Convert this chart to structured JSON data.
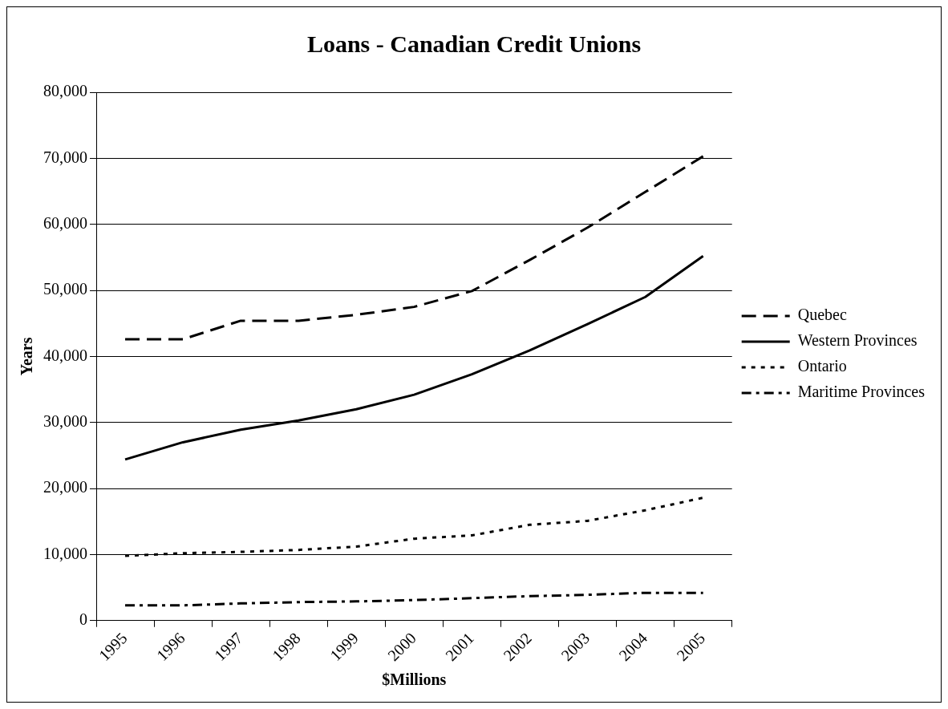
{
  "chart_data": {
    "type": "line",
    "title": "Loans - Canadian Credit Unions",
    "xlabel": "$Millions",
    "ylabel": "Years",
    "categories": [
      "1995",
      "1996",
      "1997",
      "1998",
      "1999",
      "2000",
      "2001",
      "2002",
      "2003",
      "2004",
      "2005"
    ],
    "series": [
      {
        "name": "Quebec",
        "color": "#000000",
        "line_style": "dashed",
        "values": [
          42600,
          42600,
          45400,
          45400,
          46300,
          47500,
          49900,
          54600,
          59500,
          64900,
          70300
        ]
      },
      {
        "name": "Western Provinces",
        "color": "#000000",
        "line_style": "solid",
        "values": [
          24400,
          27000,
          28900,
          30300,
          32000,
          34200,
          37300,
          40900,
          44900,
          49000,
          55200
        ]
      },
      {
        "name": "Ontario",
        "color": "#000000",
        "line_style": "dotted",
        "values": [
          9800,
          10200,
          10400,
          10700,
          11200,
          12400,
          12900,
          14500,
          15100,
          16700,
          18600
        ]
      },
      {
        "name": "Maritime Provinces",
        "color": "#000000",
        "line_style": "dashdot",
        "values": [
          2300,
          2300,
          2600,
          2800,
          2900,
          3100,
          3400,
          3700,
          3900,
          4200,
          4200
        ]
      }
    ],
    "ylim": [
      0,
      80000
    ],
    "yticks": [
      0,
      {
        "value": 10000,
        "label": "10,000"
      },
      {
        "value": 20000,
        "label": "20,000"
      },
      {
        "value": 30000,
        "label": "30,000"
      },
      {
        "value": 40000,
        "label": "40,000"
      },
      {
        "value": 50000,
        "label": "50,000"
      },
      {
        "value": 60000,
        "label": "60,000"
      },
      {
        "value": 70000,
        "label": "70,000"
      },
      {
        "value": 80000,
        "label": "80,000"
      }
    ],
    "grid": "y",
    "legend": "right",
    "marker": "none"
  }
}
